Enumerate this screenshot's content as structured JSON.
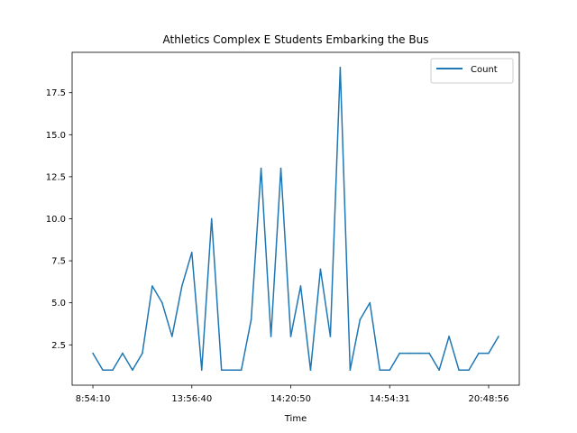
{
  "chart_data": {
    "type": "line",
    "title": "Athletics Complex E Students Embarking the Bus",
    "xlabel": "Time",
    "ylabel": "",
    "x_tick_labels": [
      "8:54:10",
      "13:56:40",
      "14:20:50",
      "14:54:31",
      "20:48:56"
    ],
    "x_tick_indices": [
      0,
      10,
      20,
      30,
      40
    ],
    "y_ticks": [
      2.5,
      5.0,
      7.5,
      10.0,
      12.5,
      15.0,
      17.5
    ],
    "y_tick_labels": [
      "2.5",
      "5.0",
      "7.5",
      "10.0",
      "12.5",
      "15.0",
      "17.5"
    ],
    "ylim": [
      0.1,
      19.9
    ],
    "xlim": [
      -2.1,
      43.1
    ],
    "grid": false,
    "legend_position": "top-right",
    "series": [
      {
        "name": "Count",
        "color": "#1f77b4",
        "values": [
          2,
          1,
          1,
          2,
          1,
          2,
          6,
          5,
          3,
          6,
          8,
          1,
          10,
          1,
          1,
          1,
          4,
          13,
          3,
          13,
          3,
          6,
          1,
          7,
          3,
          19,
          1,
          4,
          5,
          1,
          1,
          2,
          2,
          2,
          2,
          1,
          3,
          1,
          1,
          2,
          2,
          3
        ]
      }
    ]
  }
}
